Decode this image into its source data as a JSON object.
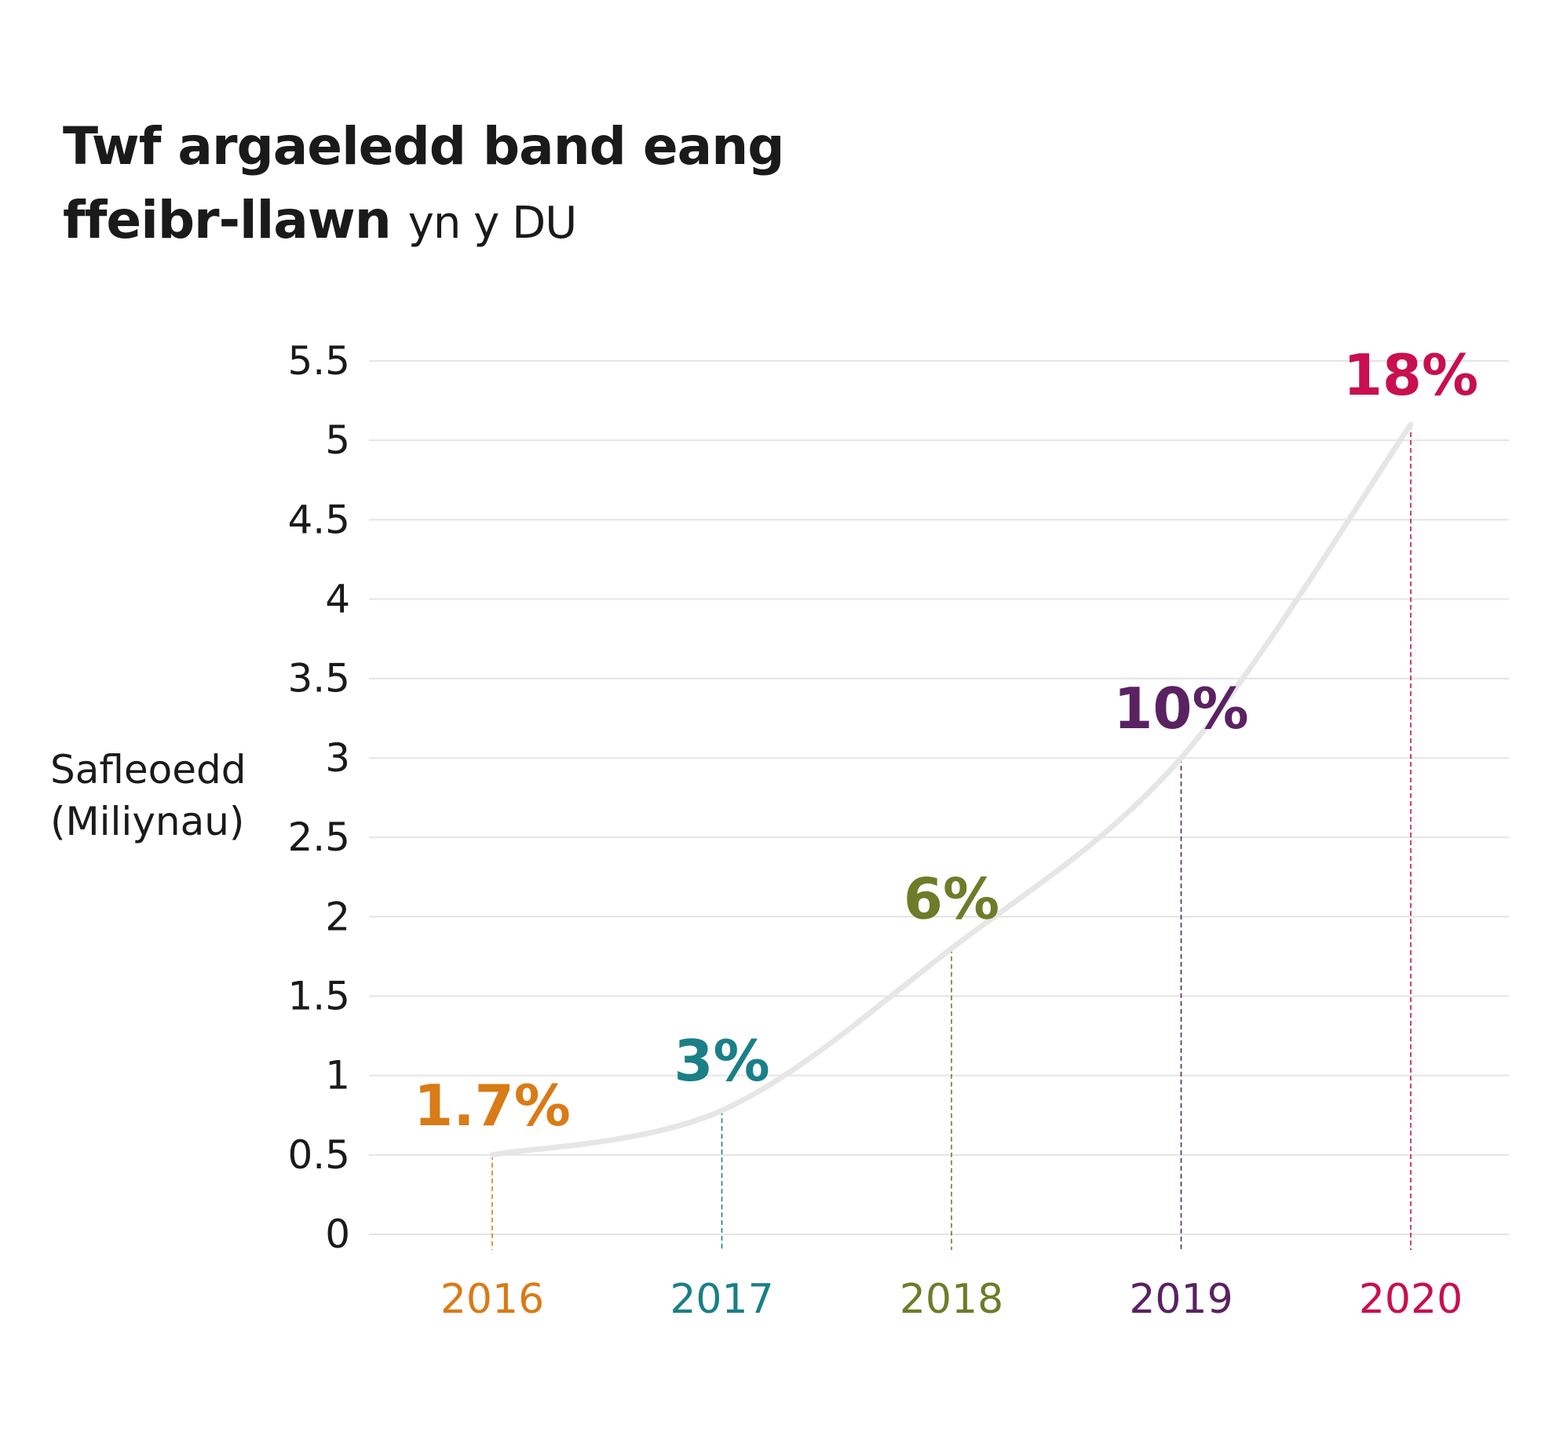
{
  "title_line1": "Twf argaeledd band eang",
  "title_line2_bold": "ffeibr-llawn",
  "title_line2_rest": "yn y DU",
  "ylabel_line1": "Safleoedd",
  "ylabel_line2": "(Miliynau)",
  "chart_data": {
    "type": "line",
    "categories": [
      "2016",
      "2017",
      "2018",
      "2019",
      "2020"
    ],
    "values": [
      0.5,
      0.78,
      1.8,
      3.0,
      5.1
    ],
    "data_labels": [
      "1.7%",
      "3%",
      "6%",
      "10%",
      "18%"
    ],
    "category_colors": [
      "#d97b16",
      "#1a7f86",
      "#6e7c2a",
      "#5a2261",
      "#c8104e"
    ],
    "line_color": "#e6e6e6",
    "ylabel": "Safleoedd (Miliynau)",
    "ylim": [
      0,
      5.5
    ],
    "yticks": [
      "0",
      "0.5",
      "1",
      "1.5",
      "2",
      "2.5",
      "3",
      "3.5",
      "4",
      "4.5",
      "5",
      "5.5"
    ],
    "grid": true,
    "smooth": true
  }
}
